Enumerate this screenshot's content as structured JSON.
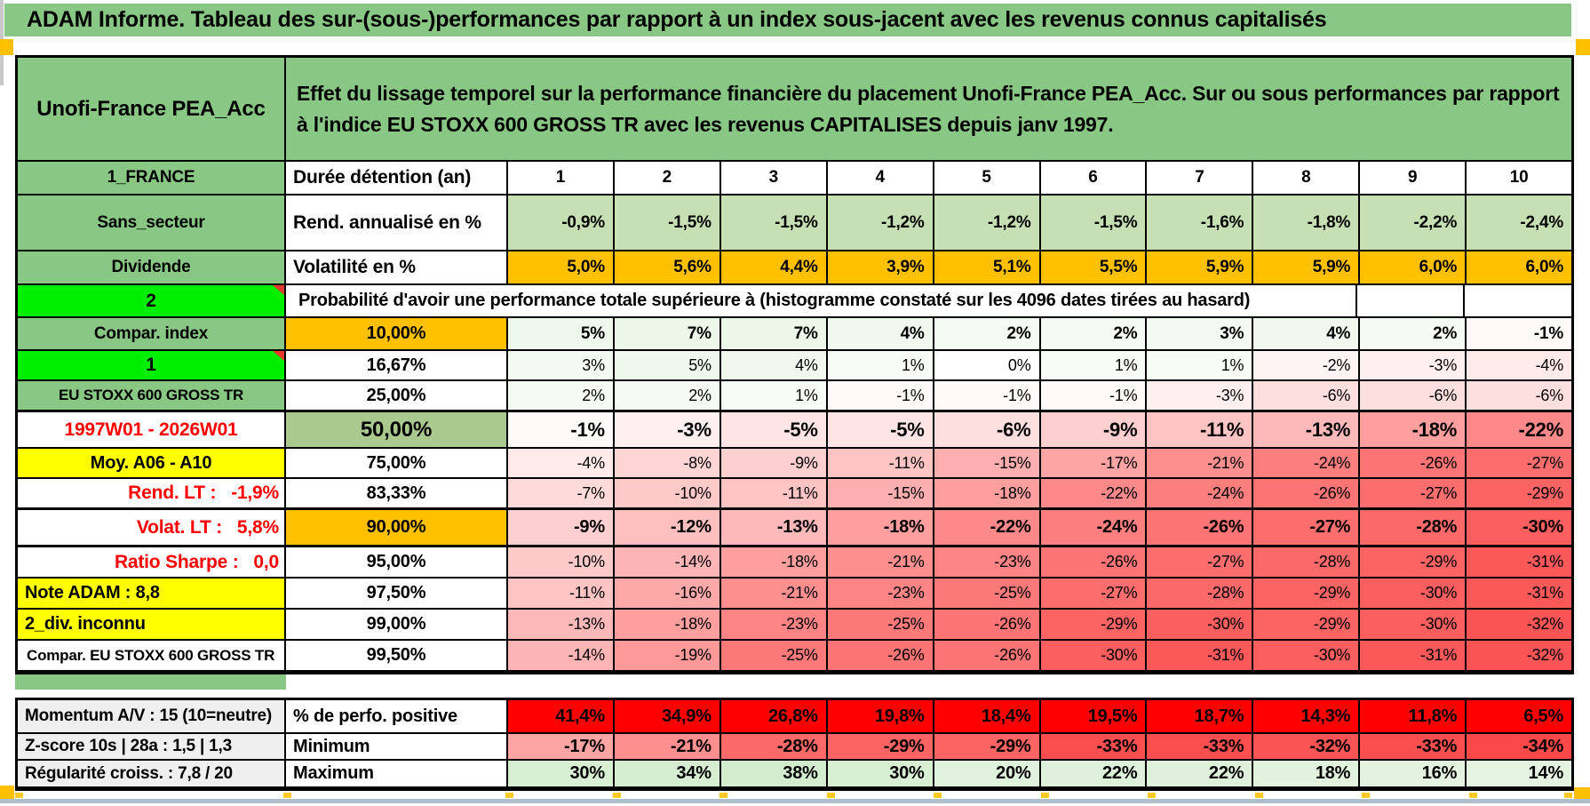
{
  "page": {
    "title": "ADAM Informe. Tableau des sur-(sous-)performances par rapport à un index sous-jacent avec les revenus connus capitalisés"
  },
  "header": {
    "product": "Unofi-France PEA_Acc",
    "description": "Effet du lissage temporel sur la performance financière du placement Unofi-France PEA_Acc. Sur ou sous performances par rapport à l'indice EU STOXX 600 GROSS TR avec les revenus CAPITALISES depuis janv 1997."
  },
  "top_rows": [
    {
      "a": "1_FRANCE",
      "b": "Durée détention (an)",
      "values": [
        "1",
        "2",
        "3",
        "4",
        "5",
        "6",
        "7",
        "8",
        "9",
        "10"
      ]
    },
    {
      "a": "Sans_secteur",
      "b": "Rend. annualisé en %",
      "values": [
        "-0,9%",
        "-1,5%",
        "-1,5%",
        "-1,2%",
        "-1,2%",
        "-1,5%",
        "-1,6%",
        "-1,8%",
        "-2,2%",
        "-2,4%"
      ]
    },
    {
      "a": "Dividende",
      "b": "Volatilité en %",
      "values": [
        "5,0%",
        "5,6%",
        "4,4%",
        "3,9%",
        "5,1%",
        "5,5%",
        "5,9%",
        "5,9%",
        "6,0%",
        "6,0%"
      ]
    }
  ],
  "probability_header": {
    "a": "2",
    "text": "Probabilité d'avoir une performance totale supérieure à (histogramme constaté sur les 4096 dates tirées au hasard)"
  },
  "probability_rows": [
    {
      "a": "Compar. index",
      "b": "10,00%",
      "values": [
        "5%",
        "7%",
        "7%",
        "4%",
        "2%",
        "2%",
        "3%",
        "4%",
        "2%",
        "-1%"
      ]
    },
    {
      "a": "1",
      "b": "16,67%",
      "values": [
        "3%",
        "5%",
        "4%",
        "1%",
        "0%",
        "1%",
        "1%",
        "-2%",
        "-3%",
        "-4%"
      ]
    },
    {
      "a": "EU STOXX 600 GROSS TR",
      "b": "25,00%",
      "values": [
        "2%",
        "2%",
        "1%",
        "-1%",
        "-1%",
        "-1%",
        "-3%",
        "-6%",
        "-6%",
        "-6%"
      ]
    },
    {
      "a": "1997W01 - 2026W01",
      "b": "50,00%",
      "values": [
        "-1%",
        "-3%",
        "-5%",
        "-5%",
        "-6%",
        "-9%",
        "-11%",
        "-13%",
        "-18%",
        "-22%"
      ]
    },
    {
      "a": "Moy. A06 - A10",
      "b": "75,00%",
      "values": [
        "-4%",
        "-8%",
        "-9%",
        "-11%",
        "-15%",
        "-17%",
        "-21%",
        "-24%",
        "-26%",
        "-27%"
      ]
    },
    {
      "a": "Rend. LT :   -1,9%",
      "b": "83,33%",
      "values": [
        "-7%",
        "-10%",
        "-11%",
        "-15%",
        "-18%",
        "-22%",
        "-24%",
        "-26%",
        "-27%",
        "-29%"
      ]
    },
    {
      "a": "Volat. LT :   5,8%",
      "b": "90,00%",
      "values": [
        "-9%",
        "-12%",
        "-13%",
        "-18%",
        "-22%",
        "-24%",
        "-26%",
        "-27%",
        "-28%",
        "-30%"
      ]
    },
    {
      "a": "Ratio Sharpe :   0,0",
      "b": "95,00%",
      "values": [
        "-10%",
        "-14%",
        "-18%",
        "-21%",
        "-23%",
        "-26%",
        "-27%",
        "-28%",
        "-29%",
        "-31%"
      ]
    },
    {
      "a": "Note ADAM : 8,8",
      "b": "97,50%",
      "values": [
        "-11%",
        "-16%",
        "-21%",
        "-23%",
        "-25%",
        "-27%",
        "-28%",
        "-29%",
        "-30%",
        "-31%"
      ]
    },
    {
      "a": "2_div. inconnu",
      "b": "99,00%",
      "values": [
        "-13%",
        "-18%",
        "-23%",
        "-25%",
        "-26%",
        "-29%",
        "-30%",
        "-29%",
        "-30%",
        "-32%"
      ]
    },
    {
      "a": "Compar. EU STOXX 600 GROSS TR",
      "b": "99,50%",
      "values": [
        "-14%",
        "-19%",
        "-25%",
        "-26%",
        "-26%",
        "-30%",
        "-31%",
        "-30%",
        "-31%",
        "-32%"
      ]
    }
  ],
  "footer_rows": [
    {
      "a": "Momentum A/V : 15 (10=neutre)",
      "b": "% de perfo. positive",
      "values": [
        "41,4%",
        "34,9%",
        "26,8%",
        "19,8%",
        "18,4%",
        "19,5%",
        "18,7%",
        "14,3%",
        "11,8%",
        "6,5%"
      ]
    },
    {
      "a": "Z-score 10s | 28a : 1,5 | 1,3",
      "b": "Minimum",
      "values": [
        "-17%",
        "-21%",
        "-28%",
        "-29%",
        "-29%",
        "-33%",
        "-33%",
        "-32%",
        "-33%",
        "-34%"
      ]
    },
    {
      "a": "Régularité croiss. : 7,8 / 20",
      "b": "Maximum",
      "values": [
        "30%",
        "34%",
        "38%",
        "30%",
        "20%",
        "22%",
        "22%",
        "18%",
        "16%",
        "14%"
      ]
    }
  ],
  "colors": {
    "title_green": "#88C784",
    "bright_green": "#00EE00",
    "sage_green": "#A9C98E",
    "rend_green": "#C6E0B4",
    "orange": "#FFC000",
    "yellow": "#FFFF00",
    "red": "#FF0000",
    "gray_label": "#EFEFEF",
    "scale_green_max": "#D2ECCD",
    "scale_red_max": "#FB4949",
    "window_line": "#AFBECB"
  }
}
